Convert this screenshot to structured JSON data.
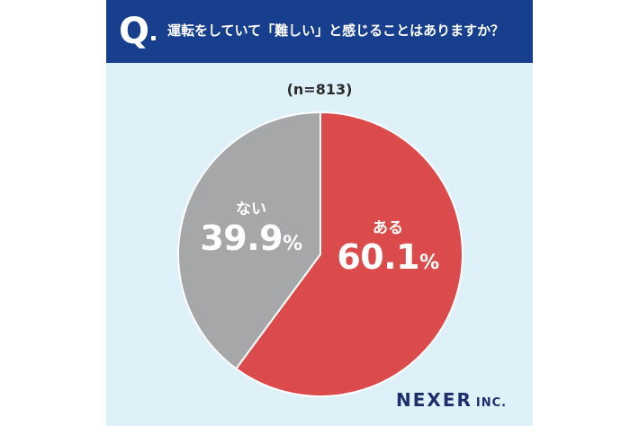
{
  "header": {
    "q_mark": "Q",
    "question": "運転をしていて「難しい」と感じることはありますか？"
  },
  "sample": "(n=813)",
  "chart_data": {
    "type": "pie",
    "title": "運転をしていて「難しい」と感じることはありますか？",
    "n": 813,
    "slices": [
      {
        "label": "ある",
        "value": 60.1,
        "color": "#dc4b4b"
      },
      {
        "label": "ない",
        "value": 39.9,
        "color": "#a6a7a9"
      }
    ],
    "start_angle_deg": 0,
    "direction": "clockwise",
    "value_suffix": "%"
  },
  "brand": {
    "main": "NEXER",
    "sub": "INC."
  }
}
